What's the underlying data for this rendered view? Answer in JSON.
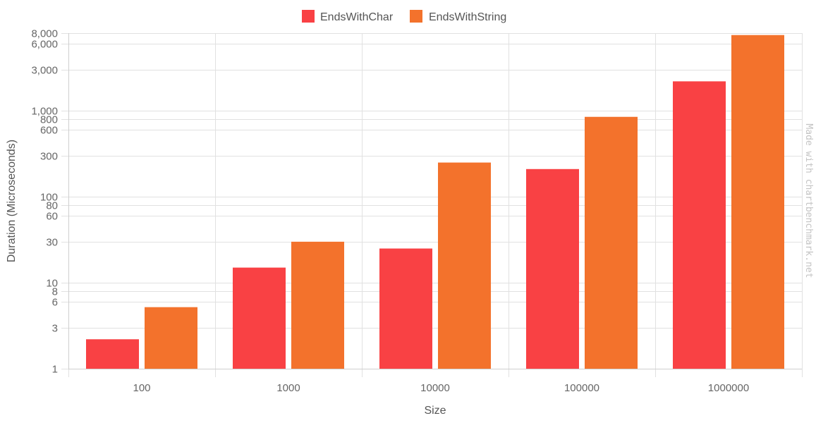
{
  "chart_data": {
    "type": "bar",
    "categories": [
      "100",
      "1000",
      "10000",
      "100000",
      "1000000"
    ],
    "series": [
      {
        "name": "EndsWithChar",
        "color": "#f94144",
        "values": [
          2.2,
          15,
          25,
          210,
          2200
        ]
      },
      {
        "name": "EndsWithString",
        "color": "#f3722c",
        "values": [
          5.2,
          30,
          250,
          850,
          7600
        ]
      }
    ],
    "xlabel": "Size",
    "ylabel": "Duration (Microseconds)",
    "yscale": "log",
    "ylim": [
      1,
      8000
    ],
    "yticks": [
      1,
      3,
      6,
      8,
      10,
      30,
      60,
      80,
      100,
      300,
      600,
      800,
      1000,
      3000,
      6000,
      8000
    ],
    "ytick_labels": [
      "1",
      "3",
      "6",
      "8",
      "10",
      "30",
      "60",
      "80",
      "100",
      "300",
      "600",
      "800",
      "1,000",
      "3,000",
      "6,000",
      "8,000"
    ],
    "legend_position": "top-center",
    "grid": true
  },
  "watermark": "Made with chartbenchmark.net"
}
